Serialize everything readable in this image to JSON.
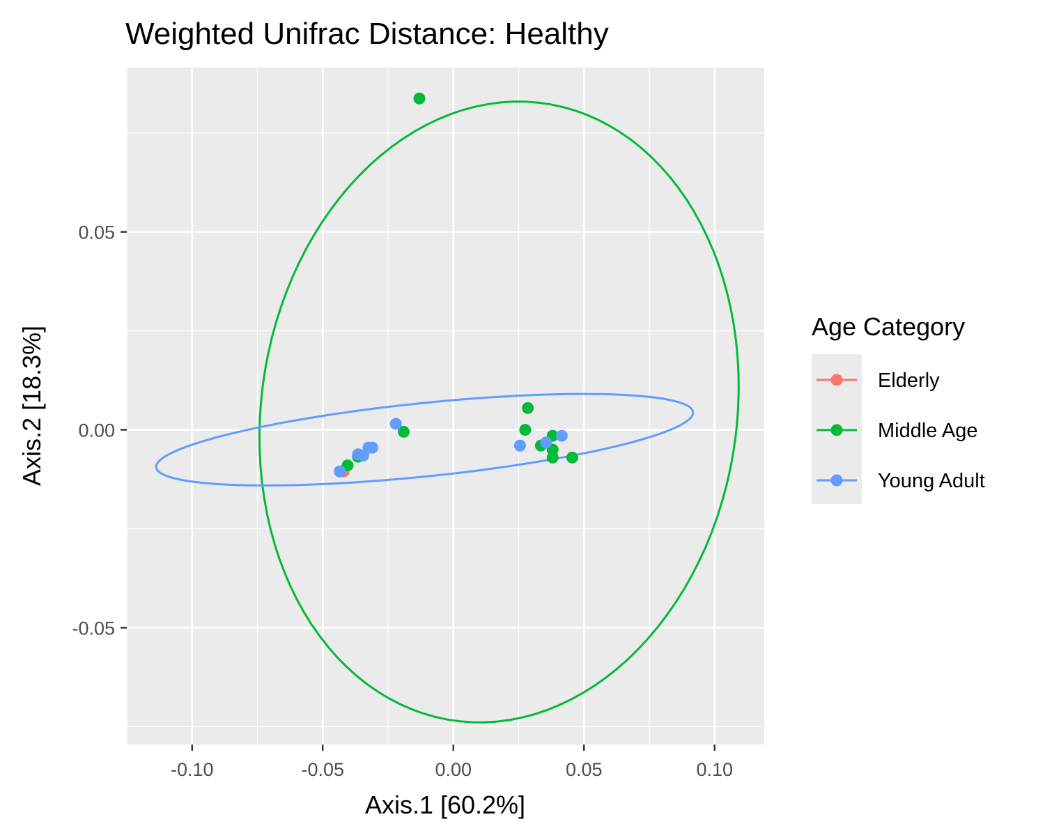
{
  "chart_data": {
    "type": "scatter",
    "title": "Weighted Unifrac Distance: Healthy",
    "xlabel": "Axis.1   [60.2%]",
    "ylabel": "Axis.2   [18.3%]",
    "xlim": [
      -0.125,
      0.119
    ],
    "ylim": [
      -0.0795,
      0.0915
    ],
    "x_ticks": [
      -0.1,
      -0.05,
      0.0,
      0.05,
      0.1
    ],
    "x_tick_labels": [
      "-0.10",
      "-0.05",
      "0.00",
      "0.05",
      "0.10"
    ],
    "y_ticks": [
      -0.05,
      0.0,
      0.05
    ],
    "y_tick_labels": [
      "-0.05",
      "0.00",
      "0.05"
    ],
    "grid": true,
    "panel_background": "#ebebeb",
    "legend": {
      "title": "Age Category",
      "position": "right",
      "entries": [
        "Elderly",
        "Middle Age",
        "Young Adult"
      ]
    },
    "series": [
      {
        "name": "Elderly",
        "color": "#f8766d",
        "points": [
          [
            -0.042,
            -0.0105
          ]
        ]
      },
      {
        "name": "Middle Age",
        "color": "#00ba38",
        "points": [
          [
            -0.013,
            0.0837
          ],
          [
            -0.019,
            -0.0005
          ],
          [
            -0.0405,
            -0.009
          ],
          [
            -0.0365,
            -0.0068
          ],
          [
            0.0285,
            0.0055
          ],
          [
            0.0275,
            0.0
          ],
          [
            0.0335,
            -0.004
          ],
          [
            0.038,
            -0.0015
          ],
          [
            0.038,
            -0.005
          ],
          [
            0.038,
            -0.007
          ],
          [
            0.0455,
            -0.007
          ]
        ],
        "ellipse": {
          "cx": 0.0175,
          "cy": 0.0045,
          "rx": 0.0925,
          "ry": 0.0775,
          "rotation_deg": 13.7
        }
      },
      {
        "name": "Young Adult",
        "color": "#619cff",
        "points": [
          [
            -0.022,
            0.0015
          ],
          [
            -0.0365,
            -0.0062
          ],
          [
            -0.0345,
            -0.0065
          ],
          [
            -0.0325,
            -0.0045
          ],
          [
            -0.031,
            -0.0045
          ],
          [
            -0.0435,
            -0.0105
          ],
          [
            0.0255,
            -0.004
          ],
          [
            0.0355,
            -0.0032
          ],
          [
            0.0415,
            -0.0015
          ]
        ],
        "ellipse": {
          "cx": -0.011,
          "cy": -0.0025,
          "rx": 0.103,
          "ry": 0.0093,
          "rotation_deg": 3.84
        }
      }
    ]
  }
}
